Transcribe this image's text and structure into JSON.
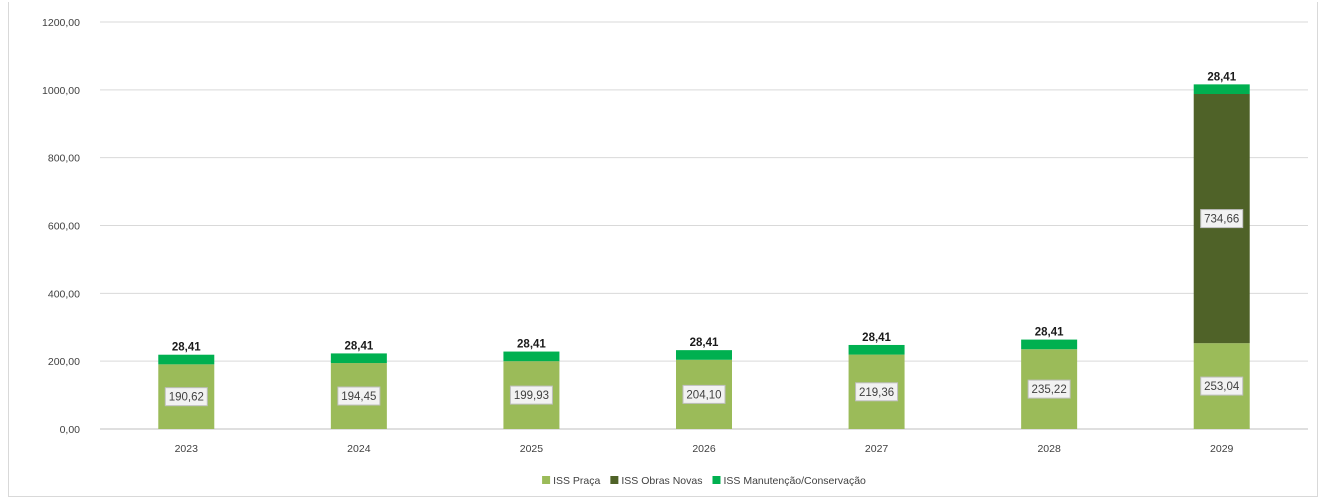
{
  "chart_data": {
    "type": "bar",
    "stacked": true,
    "categories": [
      "2023",
      "2024",
      "2025",
      "2026",
      "2027",
      "2028",
      "2029"
    ],
    "series": [
      {
        "name": "ISS Praça",
        "color": "#9bbb59",
        "values": [
          190.62,
          194.45,
          199.93,
          204.1,
          219.36,
          235.22,
          253.04
        ],
        "labels": [
          "190,62",
          "194,45",
          "199,93",
          "204,10",
          "219,36",
          "235,22",
          "253,04"
        ]
      },
      {
        "name": "ISS Obras Novas",
        "color": "#4f6228",
        "values": [
          0,
          0,
          0,
          0,
          0,
          0,
          734.66
        ],
        "labels": [
          "",
          "",
          "",
          "",
          "",
          "",
          "734,66"
        ]
      },
      {
        "name": "ISS Manutenção/Conservação",
        "color": "#00b050",
        "values": [
          28.41,
          28.41,
          28.41,
          28.41,
          28.41,
          28.41,
          28.41
        ],
        "labels": [
          "28,41",
          "28,41",
          "28,41",
          "28,41",
          "28,41",
          "28,41",
          "28,41"
        ]
      }
    ],
    "yticks": [
      "0,00",
      "200,00",
      "400,00",
      "600,00",
      "800,00",
      "1000,00",
      "1200,00"
    ],
    "ylim": [
      0,
      1200
    ],
    "grid": true,
    "legend_position": "bottom"
  }
}
